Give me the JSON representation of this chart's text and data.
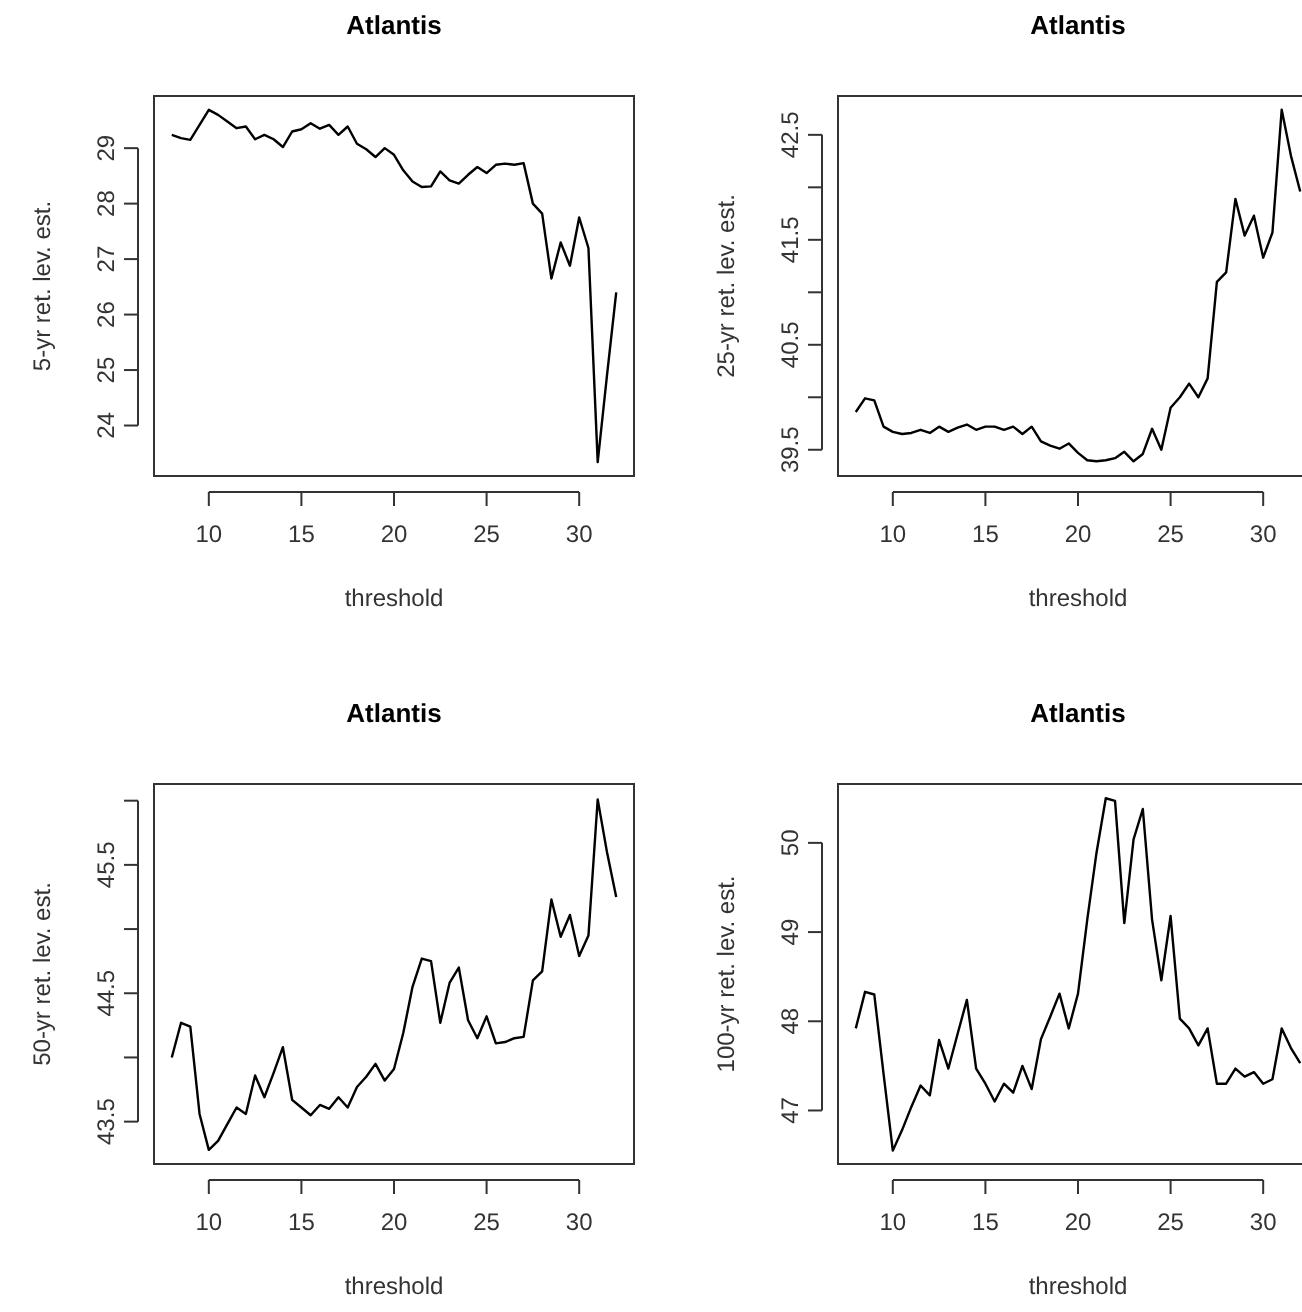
{
  "chart_data": [
    {
      "type": "line",
      "title": "Atlantis",
      "xlabel": "threshold",
      "ylabel": "5-yr ret. lev. est.",
      "x": [
        8,
        8.5,
        9,
        9.5,
        10,
        10.5,
        11,
        11.5,
        12,
        12.5,
        13,
        13.5,
        14,
        14.5,
        15,
        15.5,
        16,
        16.5,
        17,
        17.5,
        18,
        18.5,
        19,
        19.5,
        20,
        20.5,
        21,
        21.5,
        22,
        22.5,
        23,
        23.5,
        24,
        24.5,
        25,
        25.5,
        26,
        26.5,
        27,
        27.5,
        28,
        28.5,
        29,
        29.5,
        30,
        30.5,
        31,
        31.5,
        32
      ],
      "xlim": [
        7.04,
        32.96
      ],
      "xticks": [
        10,
        15,
        20,
        25,
        30
      ],
      "ylim": [
        23.09,
        29.94
      ],
      "yticks": [
        24,
        25,
        26,
        27,
        28,
        29
      ],
      "series": [
        {
          "color": "#000000",
          "values": [
            29.24,
            29.18,
            29.15,
            29.42,
            29.69,
            29.6,
            29.48,
            29.36,
            29.39,
            29.16,
            29.24,
            29.16,
            29.02,
            29.3,
            29.34,
            29.45,
            29.35,
            29.42,
            29.24,
            29.39,
            29.08,
            28.98,
            28.84,
            29.0,
            28.88,
            28.6,
            28.4,
            28.3,
            28.31,
            28.58,
            28.42,
            28.36,
            28.52,
            28.66,
            28.55,
            28.7,
            28.72,
            28.7,
            28.73,
            28.0,
            27.82,
            26.65,
            27.3,
            26.88,
            27.75,
            27.2,
            23.34,
            24.9,
            26.4
          ]
        }
      ]
    },
    {
      "type": "line",
      "title": "Atlantis",
      "xlabel": "threshold",
      "ylabel": "25-yr ret. lev. est.",
      "x": [
        8,
        8.5,
        9,
        9.5,
        10,
        10.5,
        11,
        11.5,
        12,
        12.5,
        13,
        13.5,
        14,
        14.5,
        15,
        15.5,
        16,
        16.5,
        17,
        17.5,
        18,
        18.5,
        19,
        19.5,
        20,
        20.5,
        21,
        21.5,
        22,
        22.5,
        23,
        23.5,
        24,
        24.5,
        25,
        25.5,
        26,
        26.5,
        27,
        27.5,
        28,
        28.5,
        29,
        29.5,
        30,
        30.5,
        31,
        31.5,
        32
      ],
      "xlim": [
        7.04,
        32.96
      ],
      "xticks": [
        10,
        15,
        20,
        25,
        30
      ],
      "ylim": [
        39.25,
        42.87
      ],
      "yticks": [
        39.5,
        {
          "value": 40,
          "label": null
        },
        40.5,
        {
          "value": 41,
          "label": null
        },
        41.5,
        {
          "value": 42,
          "label": null
        },
        42.5
      ],
      "series": [
        {
          "color": "#000000",
          "values": [
            39.86,
            39.99,
            39.97,
            39.72,
            39.67,
            39.65,
            39.66,
            39.69,
            39.66,
            39.72,
            39.67,
            39.71,
            39.74,
            39.69,
            39.72,
            39.72,
            39.69,
            39.72,
            39.65,
            39.72,
            39.58,
            39.54,
            39.51,
            39.56,
            39.47,
            39.4,
            39.39,
            39.4,
            39.42,
            39.48,
            39.39,
            39.46,
            39.7,
            39.5,
            39.9,
            40.0,
            40.13,
            40.0,
            40.18,
            41.1,
            41.19,
            41.89,
            41.54,
            41.73,
            41.33,
            41.57,
            42.74,
            42.3,
            41.96
          ]
        }
      ]
    },
    {
      "type": "line",
      "title": "Atlantis",
      "xlabel": "threshold",
      "ylabel": "50-yr ret. lev. est.",
      "x": [
        8,
        8.5,
        9,
        9.5,
        10,
        10.5,
        11,
        11.5,
        12,
        12.5,
        13,
        13.5,
        14,
        14.5,
        15,
        15.5,
        16,
        16.5,
        17,
        17.5,
        18,
        18.5,
        19,
        19.5,
        20,
        20.5,
        21,
        21.5,
        22,
        22.5,
        23,
        23.5,
        24,
        24.5,
        25,
        25.5,
        26,
        26.5,
        27,
        27.5,
        28,
        28.5,
        29,
        29.5,
        30,
        30.5,
        31,
        31.5,
        32
      ],
      "xlim": [
        7.04,
        32.96
      ],
      "xticks": [
        10,
        15,
        20,
        25,
        30
      ],
      "ylim": [
        43.17,
        46.13
      ],
      "yticks": [
        43.5,
        {
          "value": 44,
          "label": null
        },
        44.5,
        {
          "value": 45,
          "label": null
        },
        45.5,
        {
          "value": 46,
          "label": null
        }
      ],
      "series": [
        {
          "color": "#000000",
          "values": [
            44.0,
            44.27,
            44.24,
            43.56,
            43.28,
            43.35,
            43.48,
            43.61,
            43.56,
            43.86,
            43.69,
            43.88,
            44.08,
            43.67,
            43.61,
            43.55,
            43.63,
            43.6,
            43.69,
            43.61,
            43.77,
            43.85,
            43.95,
            43.82,
            43.91,
            44.19,
            44.55,
            44.77,
            44.75,
            44.27,
            44.58,
            44.7,
            44.29,
            44.15,
            44.32,
            44.11,
            44.12,
            44.15,
            44.16,
            44.6,
            44.67,
            45.23,
            44.94,
            45.11,
            44.79,
            44.95,
            46.01,
            45.6,
            45.25
          ]
        }
      ]
    },
    {
      "type": "line",
      "title": "Atlantis",
      "xlabel": "threshold",
      "ylabel": "100-yr ret. lev. est.",
      "x": [
        8,
        8.5,
        9,
        9.5,
        10,
        10.5,
        11,
        11.5,
        12,
        12.5,
        13,
        13.5,
        14,
        14.5,
        15,
        15.5,
        16,
        16.5,
        17,
        17.5,
        18,
        18.5,
        19,
        19.5,
        20,
        20.5,
        21,
        21.5,
        22,
        22.5,
        23,
        23.5,
        24,
        24.5,
        25,
        25.5,
        26,
        26.5,
        27,
        27.5,
        28,
        28.5,
        29,
        29.5,
        30,
        30.5,
        31,
        31.5,
        32
      ],
      "xlim": [
        7.04,
        32.96
      ],
      "xticks": [
        10,
        15,
        20,
        25,
        30
      ],
      "ylim": [
        46.4,
        50.66
      ],
      "yticks": [
        47,
        48,
        49,
        50
      ],
      "series": [
        {
          "color": "#000000",
          "values": [
            47.92,
            48.33,
            48.3,
            47.41,
            46.55,
            46.78,
            47.04,
            47.28,
            47.17,
            47.79,
            47.47,
            47.86,
            48.24,
            47.47,
            47.3,
            47.1,
            47.3,
            47.2,
            47.5,
            47.24,
            47.8,
            48.05,
            48.31,
            47.92,
            48.31,
            49.14,
            49.89,
            50.5,
            50.47,
            49.1,
            50.04,
            50.38,
            49.14,
            48.46,
            49.18,
            48.03,
            47.92,
            47.73,
            47.92,
            47.3,
            47.3,
            47.47,
            47.38,
            47.43,
            47.3,
            47.35,
            47.92,
            47.7,
            47.53
          ]
        }
      ]
    }
  ]
}
